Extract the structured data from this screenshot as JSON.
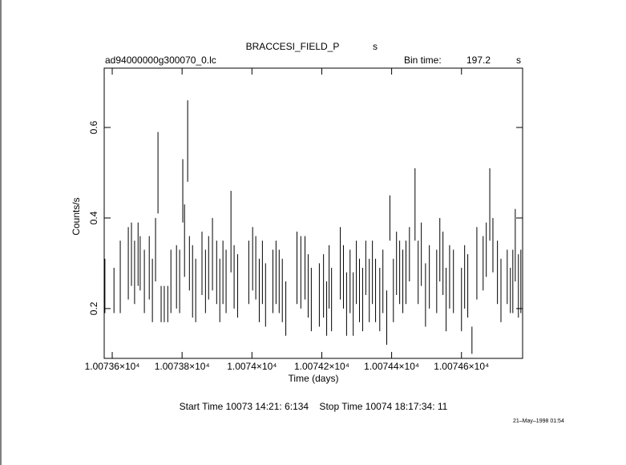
{
  "chart_data": {
    "type": "errorbar",
    "title": "BRACCESI_FIELD_P",
    "title_unit": "s",
    "file_name": "ad94000000g300070_0.lc",
    "bin_time_label": "Bin time:",
    "bin_time": 197.2,
    "bin_time_unit": "s",
    "xlabel": "Time (days)",
    "ylabel": "Counts/s",
    "footer": "Start Time 10073 14:21: 6:134    Stop Time 10074 18:17:34: 11",
    "date_stamp": "21–May–1998 01:54",
    "color": "#000000",
    "xlim": [
      10073.577,
      10074.775
    ],
    "ylim": [
      0.09,
      0.731
    ],
    "xticks": [
      {
        "value": 10073.6,
        "label": "1.00736×10⁴"
      },
      {
        "value": 10073.8,
        "label": "1.00738×10⁴"
      },
      {
        "value": 10074.0,
        "label": "1.0074×10⁴"
      },
      {
        "value": 10074.2,
        "label": "1.00742×10⁴"
      },
      {
        "value": 10074.4,
        "label": "1.00744×10⁴"
      },
      {
        "value": 10074.6,
        "label": "1.00746×10⁴"
      }
    ],
    "yticks": [
      0.2,
      0.4,
      0.6
    ],
    "x": [
      10073.579,
      10073.605,
      10073.623,
      10073.646,
      10073.655,
      10073.664,
      10073.674,
      10073.68,
      10073.692,
      10073.706,
      10073.715,
      10073.724,
      10073.731,
      10073.74,
      10073.749,
      10073.759,
      10073.768,
      10073.784,
      10073.793,
      10073.802,
      10073.807,
      10073.816,
      10073.821,
      10073.83,
      10073.839,
      10073.857,
      10073.867,
      10073.876,
      10073.887,
      10073.899,
      10073.908,
      10073.917,
      10073.926,
      10073.94,
      10073.949,
      10073.959,
      10073.991,
      10074.002,
      10074.011,
      10074.021,
      10074.03,
      10074.039,
      10074.06,
      10074.069,
      10074.078,
      10074.087,
      10074.097,
      10074.129,
      10074.14,
      10074.152,
      10074.161,
      10074.17,
      10074.193,
      10074.205,
      10074.214,
      10074.221,
      10074.228,
      10074.253,
      10074.262,
      10074.271,
      10074.281,
      10074.29,
      10074.299,
      10074.308,
      10074.317,
      10074.326,
      10074.336,
      10074.345,
      10074.354,
      10074.366,
      10074.375,
      10074.386,
      10074.395,
      10074.405,
      10074.414,
      10074.423,
      10074.432,
      10074.441,
      10074.451,
      10074.467,
      10074.476,
      10074.485,
      10074.497,
      10074.508,
      10074.529,
      10074.538,
      10074.547,
      10074.556,
      10074.566,
      10074.577,
      10074.6,
      10074.609,
      10074.618,
      10074.63,
      10074.644,
      10074.662,
      10074.671,
      10074.681,
      10074.69,
      10074.703,
      10074.713,
      10074.731,
      10074.74,
      10074.747,
      10074.754,
      10074.763,
      10074.77
    ],
    "values": [
      0.25,
      0.24,
      0.27,
      0.3,
      0.32,
      0.28,
      0.32,
      0.3,
      0.26,
      0.29,
      0.24,
      0.33,
      0.5,
      0.21,
      0.21,
      0.21,
      0.26,
      0.27,
      0.26,
      0.46,
      0.35,
      0.57,
      0.3,
      0.26,
      0.24,
      0.3,
      0.26,
      0.29,
      0.32,
      0.28,
      0.24,
      0.28,
      0.26,
      0.37,
      0.27,
      0.25,
      0.28,
      0.31,
      0.29,
      0.24,
      0.28,
      0.23,
      0.26,
      0.28,
      0.26,
      0.24,
      0.2,
      0.29,
      0.28,
      0.29,
      0.25,
      0.22,
      0.23,
      0.25,
      0.2,
      0.27,
      0.22,
      0.3,
      0.27,
      0.21,
      0.26,
      0.21,
      0.28,
      0.24,
      0.22,
      0.29,
      0.24,
      0.28,
      0.24,
      0.22,
      0.26,
      0.18,
      0.4,
      0.24,
      0.3,
      0.28,
      0.26,
      0.28,
      0.32,
      0.43,
      0.28,
      0.32,
      0.23,
      0.27,
      0.26,
      0.33,
      0.3,
      0.22,
      0.27,
      0.26,
      0.22,
      0.27,
      0.25,
      0.13,
      0.3,
      0.3,
      0.33,
      0.43,
      0.34,
      0.28,
      0.24,
      0.27,
      0.24,
      0.26,
      0.34,
      0.25,
      0.26
    ],
    "errors": [
      0.06,
      0.05,
      0.08,
      0.08,
      0.07,
      0.07,
      0.07,
      0.06,
      0.07,
      0.07,
      0.07,
      0.07,
      0.09,
      0.04,
      0.04,
      0.04,
      0.07,
      0.07,
      0.07,
      0.07,
      0.08,
      0.09,
      0.06,
      0.08,
      0.07,
      0.07,
      0.07,
      0.07,
      0.08,
      0.07,
      0.07,
      0.07,
      0.07,
      0.09,
      0.07,
      0.07,
      0.07,
      0.07,
      0.07,
      0.07,
      0.07,
      0.07,
      0.07,
      0.07,
      0.07,
      0.07,
      0.06,
      0.08,
      0.08,
      0.07,
      0.07,
      0.07,
      0.07,
      0.07,
      0.06,
      0.07,
      0.07,
      0.08,
      0.07,
      0.07,
      0.07,
      0.07,
      0.07,
      0.07,
      0.07,
      0.06,
      0.07,
      0.07,
      0.07,
      0.07,
      0.07,
      0.06,
      0.05,
      0.07,
      0.07,
      0.07,
      0.07,
      0.07,
      0.06,
      0.08,
      0.07,
      0.07,
      0.07,
      0.07,
      0.07,
      0.07,
      0.07,
      0.07,
      0.07,
      0.07,
      0.07,
      0.07,
      0.07,
      0.03,
      0.08,
      0.06,
      0.06,
      0.08,
      0.06,
      0.07,
      0.07,
      0.06,
      0.05,
      0.07,
      0.08,
      0.07,
      0.07
    ]
  }
}
